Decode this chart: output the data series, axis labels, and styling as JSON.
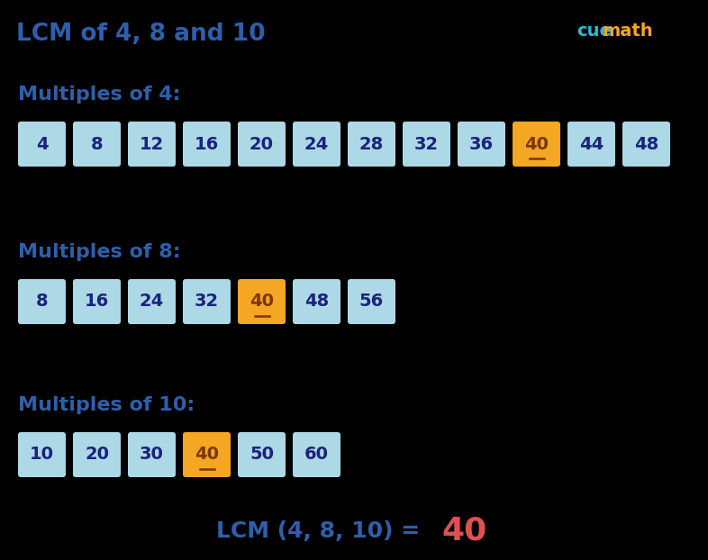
{
  "title": "LCM of 4, 8 and 10",
  "background_color": "#000000",
  "title_color": "#2e5faa",
  "title_fontsize": 19,
  "section_label_color": "#2e5faa",
  "section_label_fontsize": 16,
  "sections": [
    {
      "label": "Multiples of 4:",
      "values": [
        4,
        8,
        12,
        16,
        20,
        24,
        28,
        32,
        36,
        40,
        44,
        48
      ],
      "highlight_indices": [
        9
      ]
    },
    {
      "label": "Multiples of 8:",
      "values": [
        8,
        16,
        24,
        32,
        40,
        48,
        56
      ],
      "highlight_indices": [
        4
      ]
    },
    {
      "label": "Multiples of 10:",
      "values": [
        10,
        20,
        30,
        40,
        50,
        60
      ],
      "highlight_indices": [
        3
      ]
    }
  ],
  "box_normal_color": "#add8e6",
  "box_highlight_color": "#f5a623",
  "box_normal_text_color": "#1a237e",
  "box_highlight_text_color": "#7a3800",
  "box_edge_normal": "#add8e6",
  "box_edge_highlight": "#e8960f",
  "footer_text": "LCM (4, 8, 10) = ",
  "footer_number": "40",
  "footer_text_color": "#2e5faa",
  "footer_number_color": "#e05050",
  "footer_fontsize": 18,
  "cuemath_cue_color": "#2bbcd4",
  "cuemath_math_color": "#f5a623",
  "cuemath_fontsize": 14
}
